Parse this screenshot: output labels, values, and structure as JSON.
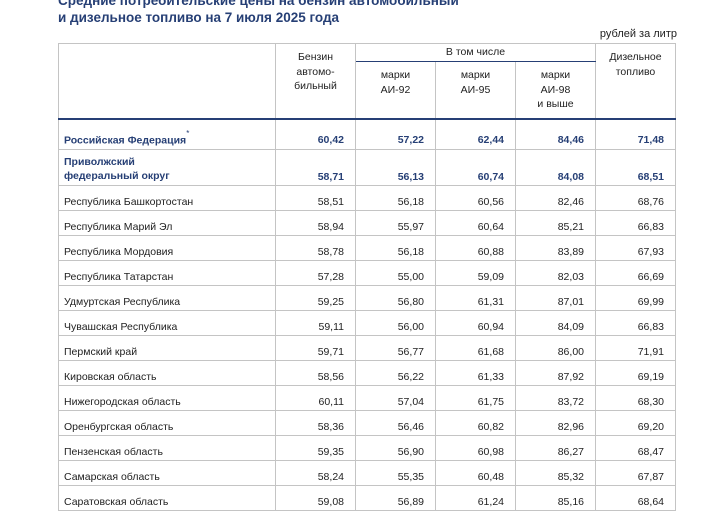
{
  "title_line1": "Средние потребительские цены на бензин автомобильный",
  "title_line2": "и дизельное топливо на 7 июля 2025 года",
  "unit": "рублей за литр",
  "headers": {
    "benzin": [
      "Бензин",
      "автомо-",
      "бильный"
    ],
    "v_tom_chisle": "В том числе",
    "ai92": [
      "марки",
      "АИ-92"
    ],
    "ai95": [
      "марки",
      "АИ-95"
    ],
    "ai98": [
      "марки",
      "АИ-98",
      "и выше"
    ],
    "diesel": [
      "Дизельное",
      "топливо"
    ]
  },
  "summary_rows": [
    {
      "name": "Российская Федерация",
      "mark": "*",
      "values": [
        "60,42",
        "57,22",
        "62,44",
        "84,46",
        "71,48"
      ]
    },
    {
      "name_lines": [
        "Приволжский",
        "федеральный округ"
      ],
      "values": [
        "58,71",
        "56,13",
        "60,74",
        "84,08",
        "68,51"
      ]
    }
  ],
  "regions": [
    {
      "name": "Республика Башкортостан",
      "values": [
        "58,51",
        "56,18",
        "60,56",
        "82,46",
        "68,76"
      ]
    },
    {
      "name": "Республика Марий Эл",
      "values": [
        "58,94",
        "55,97",
        "60,64",
        "85,21",
        "66,83"
      ]
    },
    {
      "name": "Республика Мордовия",
      "values": [
        "58,78",
        "56,18",
        "60,88",
        "83,89",
        "67,93"
      ]
    },
    {
      "name": "Республика Татарстан",
      "values": [
        "57,28",
        "55,00",
        "59,09",
        "82,03",
        "66,69"
      ]
    },
    {
      "name": "Удмуртская Республика",
      "values": [
        "59,25",
        "56,80",
        "61,31",
        "87,01",
        "69,99"
      ]
    },
    {
      "name": "Чувашская Республика",
      "values": [
        "59,11",
        "56,00",
        "60,94",
        "84,09",
        "66,83"
      ]
    },
    {
      "name": "Пермский край",
      "values": [
        "59,71",
        "56,77",
        "61,68",
        "86,00",
        "71,91"
      ]
    },
    {
      "name": "Кировская область",
      "values": [
        "58,56",
        "56,22",
        "61,33",
        "87,92",
        "69,19"
      ]
    },
    {
      "name": "Нижегородская область",
      "values": [
        "60,11",
        "57,04",
        "61,75",
        "83,72",
        "68,30"
      ]
    },
    {
      "name": "Оренбургская область",
      "values": [
        "58,36",
        "56,46",
        "60,82",
        "82,96",
        "69,20"
      ]
    },
    {
      "name": "Пензенская область",
      "values": [
        "59,35",
        "56,90",
        "60,98",
        "86,27",
        "68,47"
      ]
    },
    {
      "name": "Самарская область",
      "values": [
        "58,24",
        "55,35",
        "60,48",
        "85,32",
        "67,87"
      ]
    },
    {
      "name": "Саратовская область",
      "values": [
        "59,08",
        "56,89",
        "61,24",
        "85,16",
        "68,64"
      ]
    }
  ]
}
